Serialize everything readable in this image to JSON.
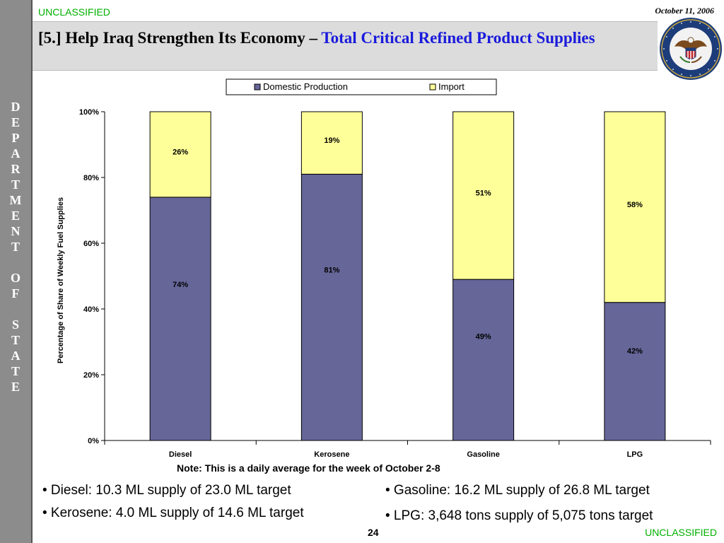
{
  "header": {
    "classification": "UNCLASSIFIED",
    "date": "October 11, 2006",
    "title_part1": "[5.] Help Iraq Strengthen Its Economy – ",
    "title_part2": "Total Critical Refined Product Supplies"
  },
  "sidebar": {
    "letters": [
      "D",
      "E",
      "P",
      "A",
      "R",
      "T",
      "M",
      "E",
      "N",
      "T",
      " ",
      "O",
      "F",
      " ",
      "S",
      "T",
      "A",
      "T",
      "E"
    ]
  },
  "seal": {
    "outer_text": "DEPARTMENT OF STATE · UNITED STATES OF AMERICA",
    "colors": {
      "ring": "#1d3c7a",
      "inner": "#f2f2f2",
      "eagle": "#7a4a1e",
      "shield_red": "#c0282d"
    }
  },
  "chart_data": {
    "type": "bar",
    "stacked": true,
    "categories": [
      "Diesel",
      "Kerosene",
      "Gasoline",
      "LPG"
    ],
    "series": [
      {
        "name": "Domestic Production",
        "values": [
          74,
          81,
          49,
          42
        ],
        "labels": [
          "74%",
          "81%",
          "49%",
          "42%"
        ],
        "color": "#666699"
      },
      {
        "name": "Import",
        "values": [
          26,
          19,
          51,
          58
        ],
        "labels": [
          "26%",
          "19%",
          "51%",
          "58%"
        ],
        "color": "#ffff99"
      }
    ],
    "ylabel": "Percentage of Share of Weekly Fuel Supplies",
    "ylim": [
      0,
      100
    ],
    "yticks": [
      "0%",
      "20%",
      "40%",
      "60%",
      "80%",
      "100%"
    ],
    "legend": "top-center",
    "grid": false
  },
  "note": "Note: This is a daily average for the week of October 2-8",
  "bullets": {
    "diesel": "• Diesel: 10.3 ML supply of 23.0 ML target",
    "kerosene": "• Kerosene: 4.0 ML supply of 14.6 ML target",
    "gasoline": "• Gasoline: 16.2 ML supply of 26.8 ML target",
    "lpg": "• LPG: 3,648 tons supply of 5,075 tons target"
  },
  "footer": {
    "page_number": "24",
    "classification": "UNCLASSIFIED"
  }
}
